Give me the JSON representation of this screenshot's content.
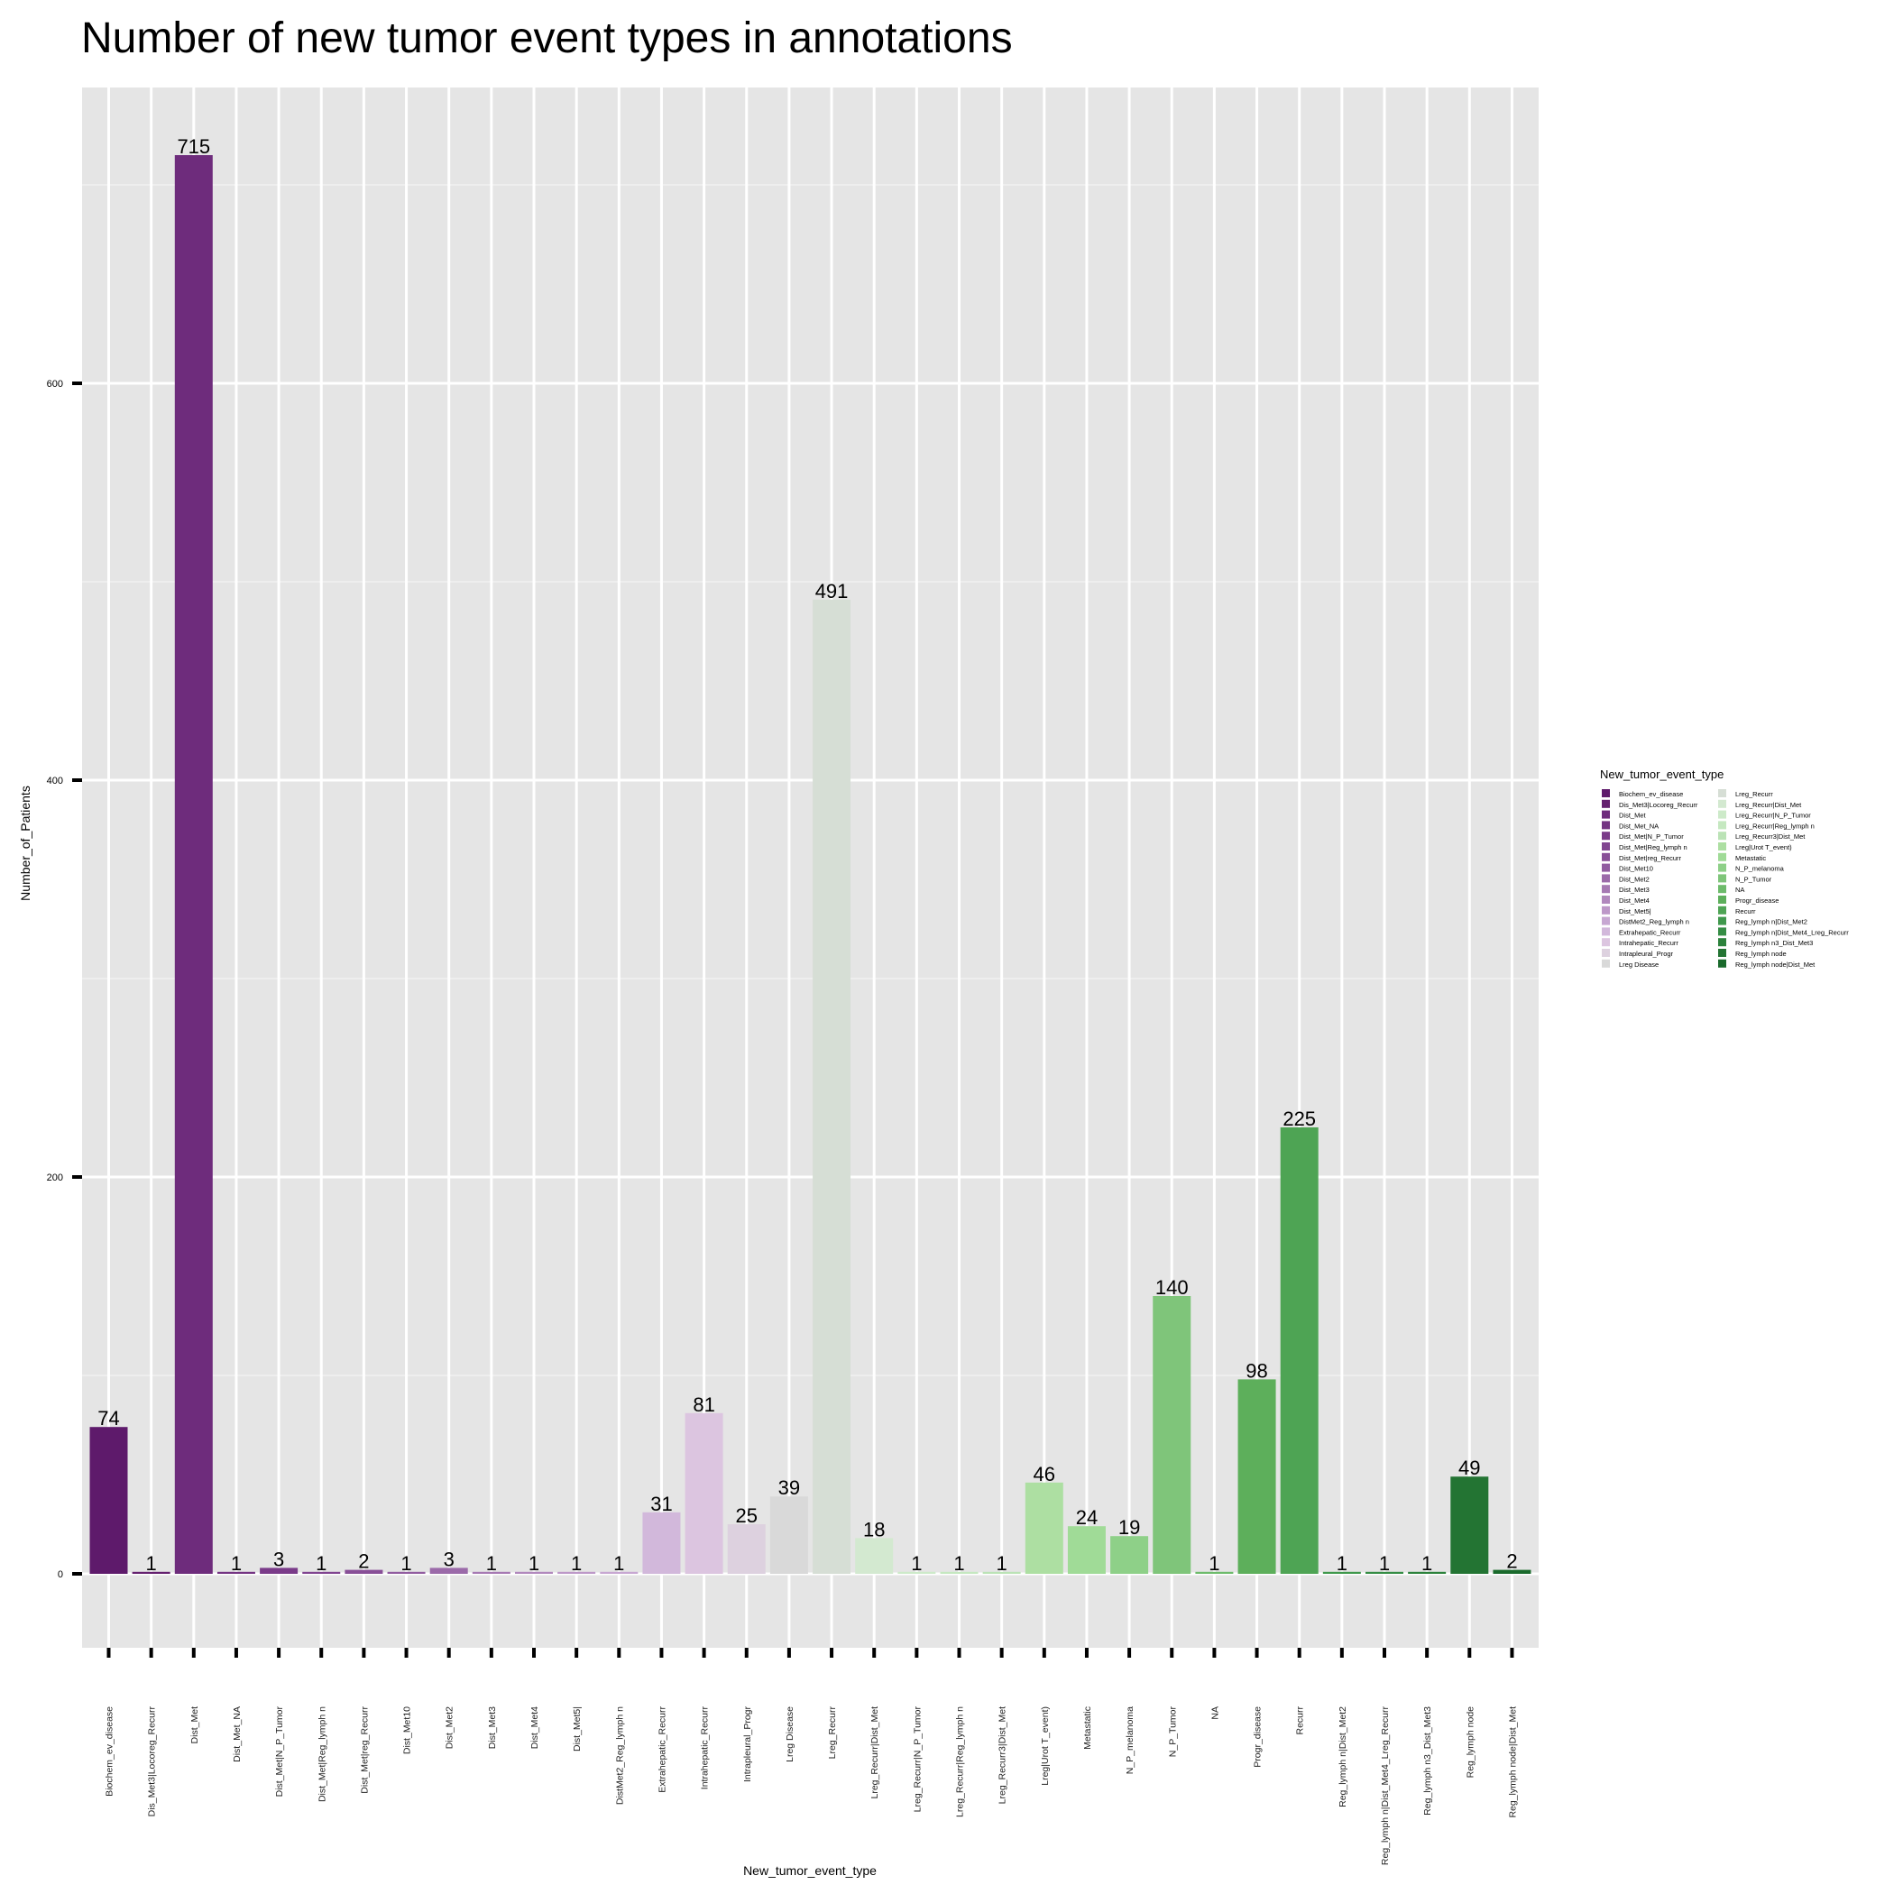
{
  "chart_data": {
    "type": "bar",
    "title": "Number of new tumor event types in annotations",
    "xlabel": "New_tumor_event_type",
    "ylabel": "Number_of_Patients",
    "ylim": [
      -35,
      752
    ],
    "yticks": [
      0,
      200,
      400,
      600
    ],
    "grid": true,
    "legend_position": "right",
    "legend_title": "New_tumor_event_type",
    "categories": [
      "Biochem_ev_disease",
      "Dis_Met3|Locoreg_Recurr",
      "Dist_Met",
      "Dist_Met_NA",
      "Dist_Met|N_P_Tumor",
      "Dist_Met|Reg_lymph n",
      "Dist_Met|reg_Recurr",
      "Dist_Met10",
      "Dist_Met2",
      "Dist_Met3",
      "Dist_Met4",
      "Dist_Met5|",
      "DistMet2_Reg_lymph n",
      "Extrahepatic_Recurr",
      "Intrahepatic_Recurr",
      "Intrapleural_Progr",
      "Lreg Disease",
      "Lreg_Recurr",
      "Lreg_Recurr|Dist_Met",
      "Lreg_Recurr|N_P_Tumor",
      "Lreg_Recurr|Reg_lymph n",
      "Lreg_Recurr3|Dist_Met",
      "Lreg|Urot T_event)",
      "Metastatic",
      "N_P_melanoma",
      "N_P_Tumor",
      "NA",
      "Progr_disease",
      "Recurr",
      "Reg_lymph n|Dist_Met2",
      "Reg_lymph n|Dist_Met4_Lreg_Recurr",
      "Reg_lymph n3_Dist_Met3",
      "Reg_lymph node",
      "Reg_lymph node|Dist_Met"
    ],
    "values": [
      74,
      1,
      715,
      1,
      3,
      1,
      2,
      1,
      3,
      1,
      1,
      1,
      1,
      31,
      81,
      25,
      39,
      491,
      18,
      1,
      1,
      1,
      46,
      24,
      19,
      140,
      1,
      98,
      225,
      1,
      1,
      1,
      49,
      2
    ],
    "value_labels": [
      "74",
      "1",
      "715",
      "1",
      "3",
      "1",
      "2",
      "1",
      "3",
      "1",
      "1",
      "1",
      "1",
      "31",
      "81",
      "25",
      "39",
      "491",
      "18",
      "1",
      "1",
      "1",
      "46",
      "24",
      "19",
      "140",
      "1",
      "98",
      "225",
      "1",
      "1",
      "1",
      "49",
      "2"
    ],
    "colors": [
      "#5e1a6b",
      "#64206f",
      "#6e2c7c",
      "#743483",
      "#7a3b89",
      "#804490",
      "#884f97",
      "#915ca0",
      "#9b6aa9",
      "#a679b3",
      "#b188bd",
      "#bd98c8",
      "#c7a7d2",
      "#d2b8db",
      "#dcc5e0",
      "#ddd1df",
      "#d9d9d9",
      "#d6ded5",
      "#d3e9d0",
      "#cdeac9",
      "#c5e8c0",
      "#bbe3b6",
      "#addfa2",
      "#a0db97",
      "#8ed088",
      "#7fc57a",
      "#6dbb6b",
      "#5daf5b",
      "#4ea454",
      "#3f984c",
      "#358d45",
      "#2c823c",
      "#237433",
      "#1a6a2c"
    ],
    "legend_left": [
      "Biochem_ev_disease",
      "Dis_Met3|Locoreg_Recurr",
      "Dist_Met",
      "Dist_Met_NA",
      "Dist_Met|N_P_Tumor",
      "Dist_Met|Reg_lymph n",
      "Dist_Met|reg_Recurr",
      "Dist_Met10",
      "Dist_Met2",
      "Dist_Met3",
      "Dist_Met4",
      "Dist_Met5|",
      "DistMet2_Reg_lymph n",
      "Extrahepatic_Recurr",
      "Intrahepatic_Recurr",
      "Intrapleural_Progr",
      "Lreg Disease"
    ],
    "legend_right": [
      "Lreg_Recurr",
      "Lreg_Recurr|Dist_Met",
      "Lreg_Recurr|N_P_Tumor",
      "Lreg_Recurr|Reg_lymph n",
      "Lreg_Recurr3|Dist_Met",
      "Lreg|Urot T_event)",
      "Metastatic",
      "N_P_melanoma",
      "N_P_Tumor",
      "NA",
      "Progr_disease",
      "Recurr",
      "Reg_lymph n|Dist_Met2",
      "Reg_lymph n|Dist_Met4_Lreg_Recurr",
      "Reg_lymph n3_Dist_Met3",
      "Reg_lymph node",
      "Reg_lymph node|Dist_Met"
    ]
  }
}
